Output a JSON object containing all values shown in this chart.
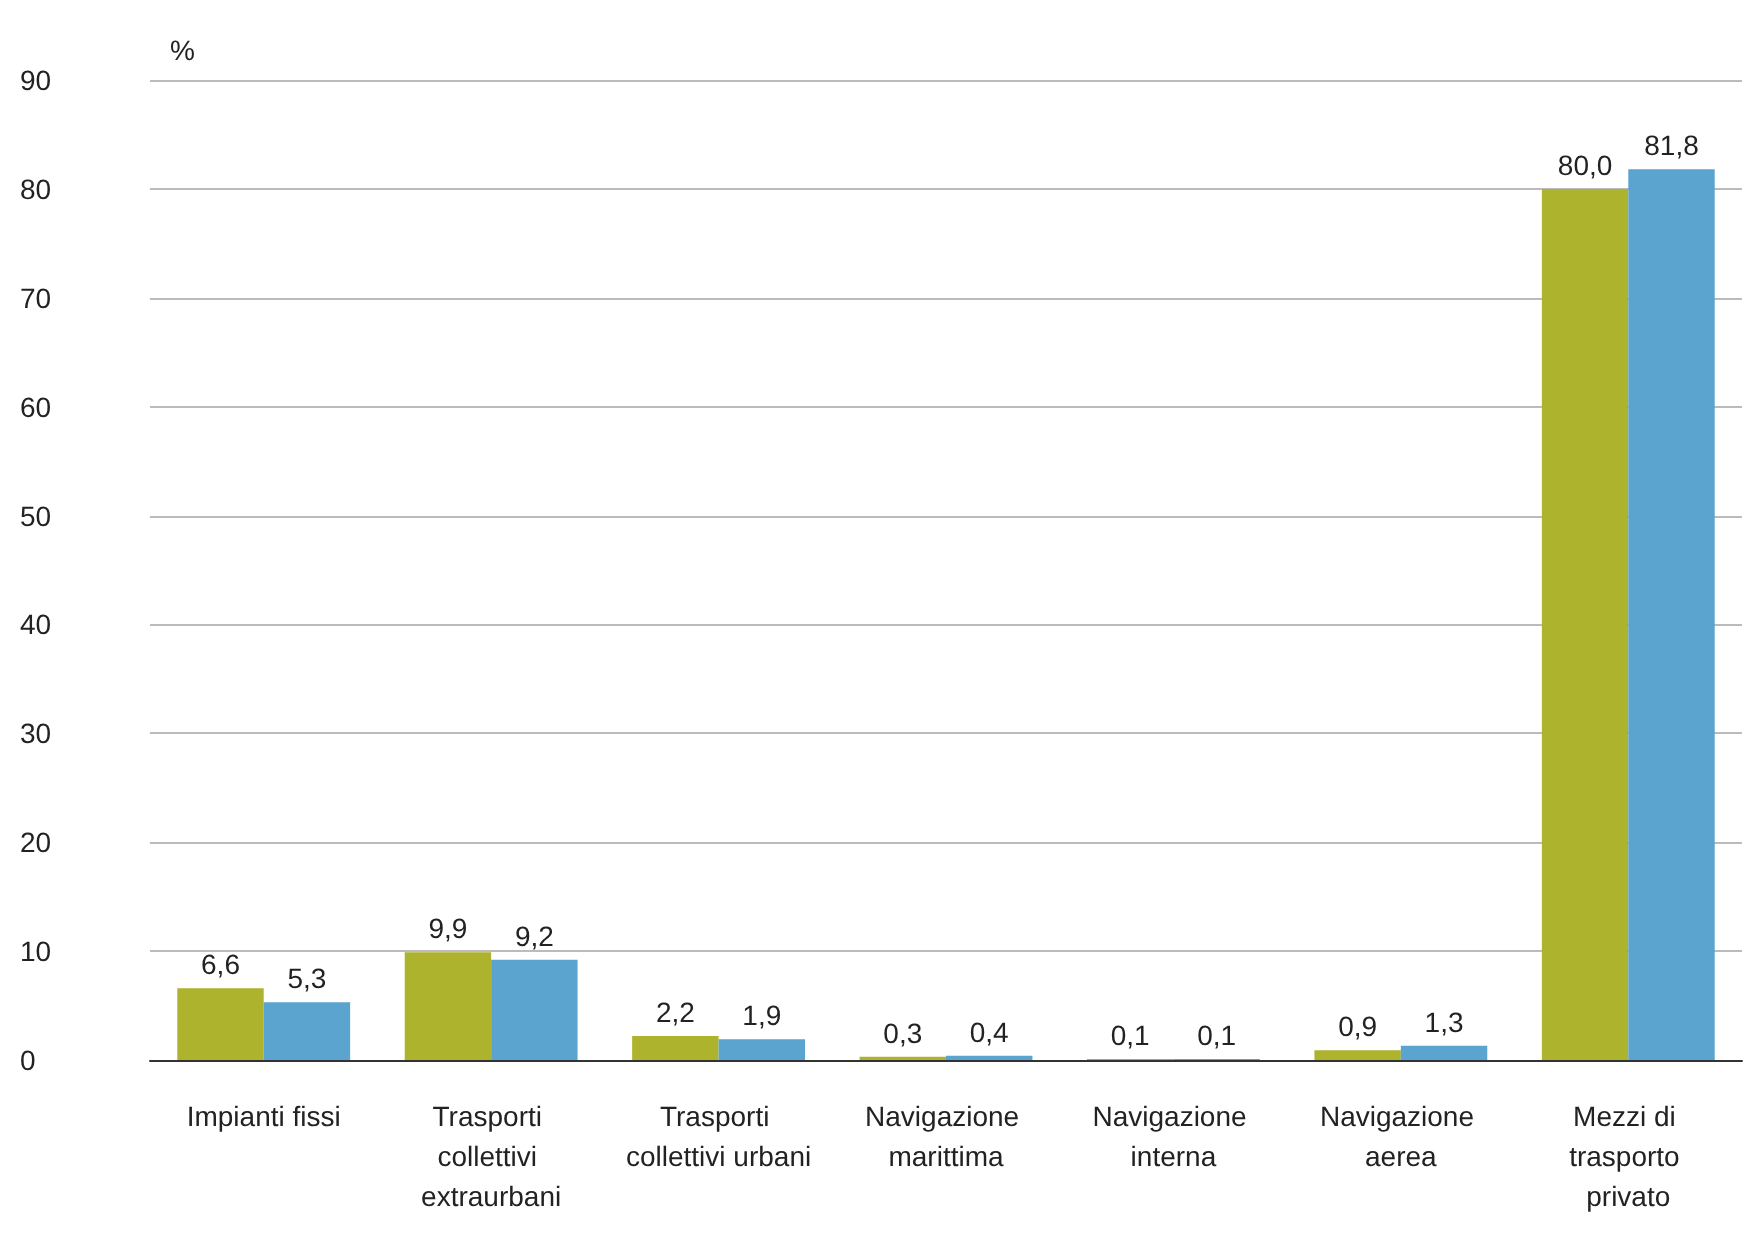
{
  "chart_data": {
    "type": "bar",
    "ylabel": "%",
    "categories": [
      "Impianti fissi",
      "Trasporti collettivi extraurbani",
      "Trasporti collettivi urbani",
      "Navigazione marittima",
      "Navigazione interna",
      "Navigazione aerea",
      "Mezzi di trasporto privato"
    ],
    "series": [
      {
        "color": "#adb32c",
        "values": [
          6.6,
          9.9,
          2.2,
          0.3,
          0.1,
          0.9,
          80.0
        ],
        "value_labels": [
          "6,6",
          "9,9",
          "2,2",
          "0,3",
          "0,1",
          "0,9",
          "80,0"
        ]
      },
      {
        "color": "#5ba4cf",
        "values": [
          5.3,
          9.2,
          1.9,
          0.4,
          0.1,
          1.3,
          81.8
        ],
        "value_labels": [
          "5,3",
          "9,2",
          "1,9",
          "0,4",
          "0,1",
          "1,3",
          "81,8"
        ]
      }
    ],
    "ylim": [
      0,
      90
    ],
    "yticks": [
      0,
      10,
      20,
      30,
      40,
      50,
      60,
      70,
      80,
      90
    ],
    "grid": "y"
  }
}
